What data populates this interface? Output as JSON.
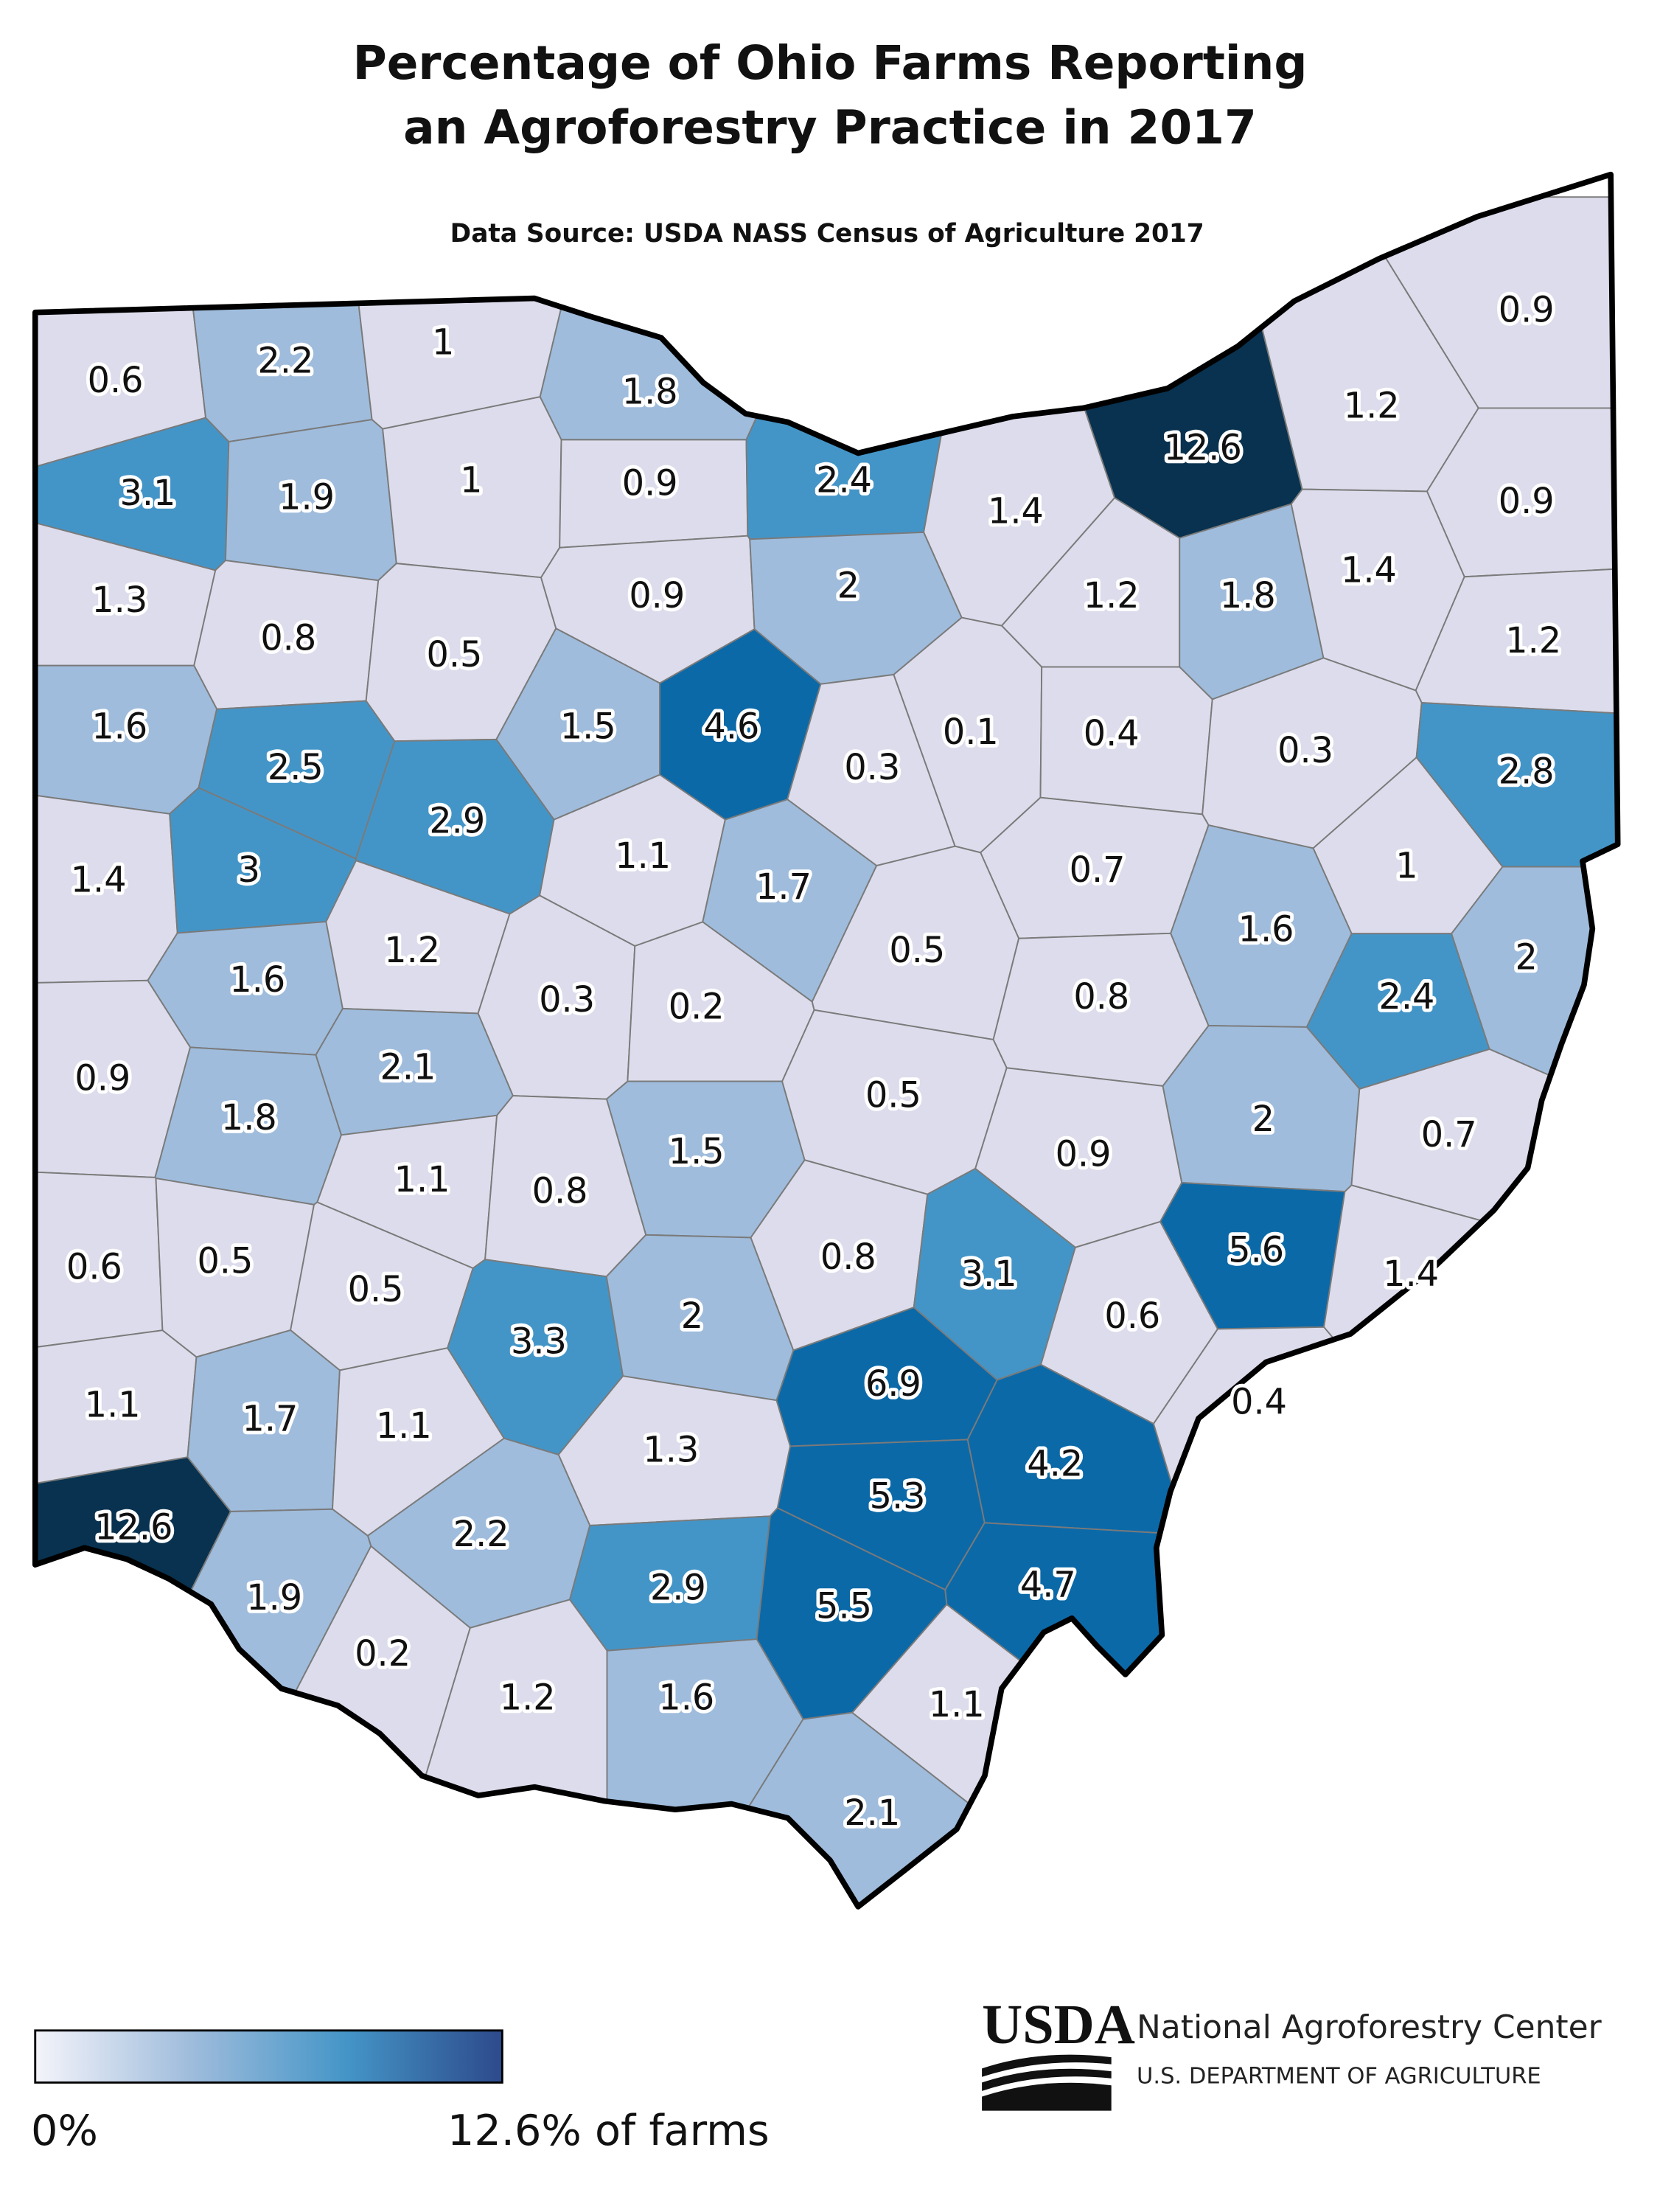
{
  "map_data": {
    "type": "choropleth",
    "title_lines": [
      "Percentage of Ohio Farms Reporting",
      "an Agroforestry Practice in 2017"
    ],
    "subtitle": "Data Source: USDA NASS Census of Agriculture 2017",
    "values": [
      0.6,
      2.2,
      1,
      1.8,
      12.6,
      1.2,
      0.9,
      3.1,
      1.9,
      1,
      0.9,
      2.4,
      1.4,
      0.9,
      1.3,
      0.8,
      0.5,
      0.9,
      2,
      1.2,
      1.8,
      1.4,
      1.2,
      1.6,
      2.5,
      1.5,
      4.6,
      0.3,
      0.1,
      0.4,
      0.3,
      2.8,
      1.4,
      3,
      2.9,
      1.1,
      1.7,
      0.7,
      1,
      1.6,
      1.2,
      0.3,
      0.2,
      0.5,
      0.8,
      1.6,
      2.4,
      2,
      0.9,
      1.8,
      2.1,
      1.5,
      0.5,
      0.9,
      2,
      0.7,
      1.1,
      0.8,
      0.6,
      0.5,
      0.5,
      3.3,
      2,
      0.8,
      3.1,
      0.6,
      5.6,
      1.4,
      1.1,
      1.7,
      1.1,
      6.9,
      1.3,
      4.2,
      0.4,
      12.6,
      2.2,
      5.3,
      2.9,
      5.5,
      4.7,
      1.9,
      0.2,
      1.2,
      1.6,
      1.1,
      2.1
    ],
    "colors": [
      "#dcdcec",
      "#9fbcdc",
      "#4495c7",
      "#0b69a8",
      "#08324f"
    ],
    "legend": {
      "min": 0,
      "max": 12.6,
      "min_label": "0%",
      "max_label": "12.6% of farms",
      "gradient": [
        "#f4f4fa",
        "#9fbcdc",
        "#4495c7",
        "#2d4a8c"
      ]
    },
    "branding": {
      "logo": "USDA",
      "name": "National Agroforestry Center",
      "department": "U.S. DEPARTMENT OF AGRICULTURE"
    }
  }
}
